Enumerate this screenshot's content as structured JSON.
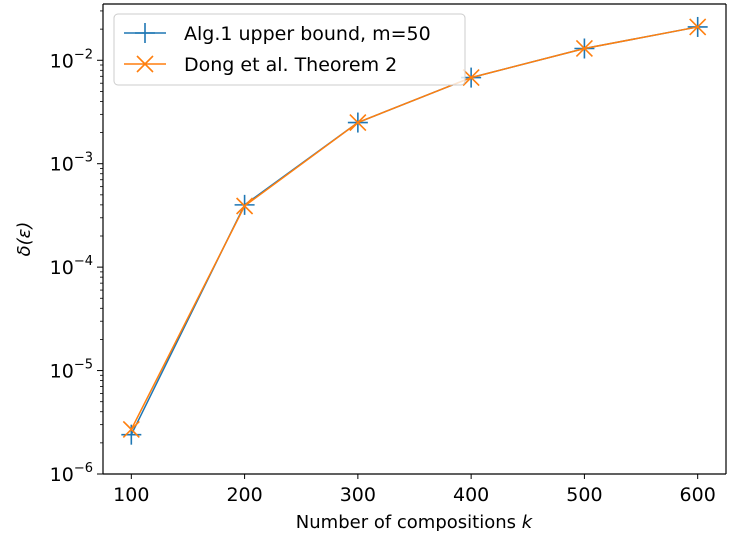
{
  "chart_data": {
    "type": "line",
    "title": "",
    "xlabel": "Number of compositions k",
    "ylabel": "δ(ε)",
    "x": [
      100,
      200,
      300,
      400,
      500,
      600
    ],
    "xlim": [
      75,
      625
    ],
    "xticks": [
      100,
      200,
      300,
      400,
      500,
      600
    ],
    "yscale": "log",
    "ylim": [
      1e-06,
      0.035
    ],
    "yticks": [
      {
        "value": 1e-06,
        "base": "10",
        "exp": "−6"
      },
      {
        "value": 1e-05,
        "base": "10",
        "exp": "−5"
      },
      {
        "value": 0.0001,
        "base": "10",
        "exp": "−4"
      },
      {
        "value": 0.001,
        "base": "10",
        "exp": "−3"
      },
      {
        "value": 0.01,
        "base": "10",
        "exp": "−2"
      }
    ],
    "grid": false,
    "legend_position": "top-left",
    "series": [
      {
        "name": "Alg.1 upper bound, m=50",
        "color": "#1f77b4",
        "marker": "plus",
        "values": [
          2.4e-06,
          0.0004,
          0.0025,
          0.0068,
          0.013,
          0.021
        ]
      },
      {
        "name": "Dong et al. Theorem 2",
        "color": "#ff7f0e",
        "marker": "x",
        "values": [
          2.7e-06,
          0.00039,
          0.0025,
          0.0068,
          0.013,
          0.021
        ]
      }
    ]
  }
}
